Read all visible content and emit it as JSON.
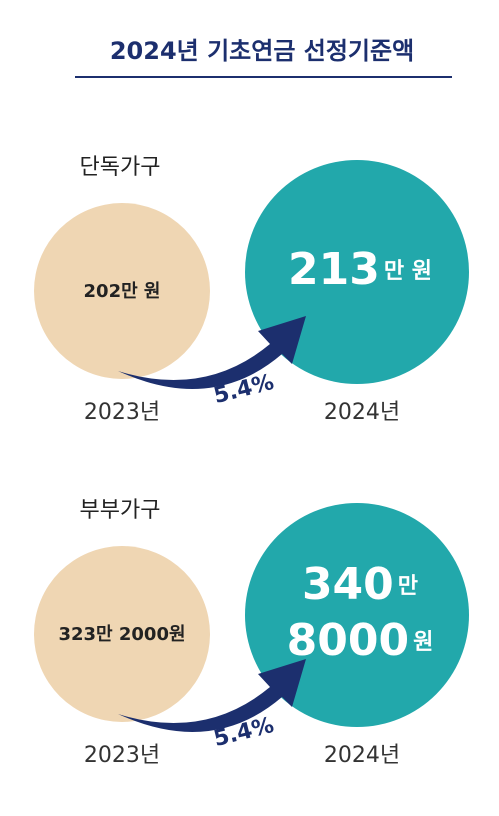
{
  "title": "2024년 기초연금 선정기준액",
  "groups": [
    {
      "label": "단독가구",
      "before": {
        "amount": "202만 원",
        "year": "2023년"
      },
      "after": {
        "lines": [
          {
            "number": "213",
            "unit": "만 원"
          }
        ],
        "year": "2024년"
      },
      "change": "5.4%"
    },
    {
      "label": "부부가구",
      "before": {
        "amount": "323만 2000원",
        "year": "2023년"
      },
      "after": {
        "lines": [
          {
            "number": "340",
            "unit": "만"
          },
          {
            "number": "8000",
            "unit": "원"
          }
        ],
        "year": "2024년"
      },
      "change": "5.4%"
    }
  ]
}
